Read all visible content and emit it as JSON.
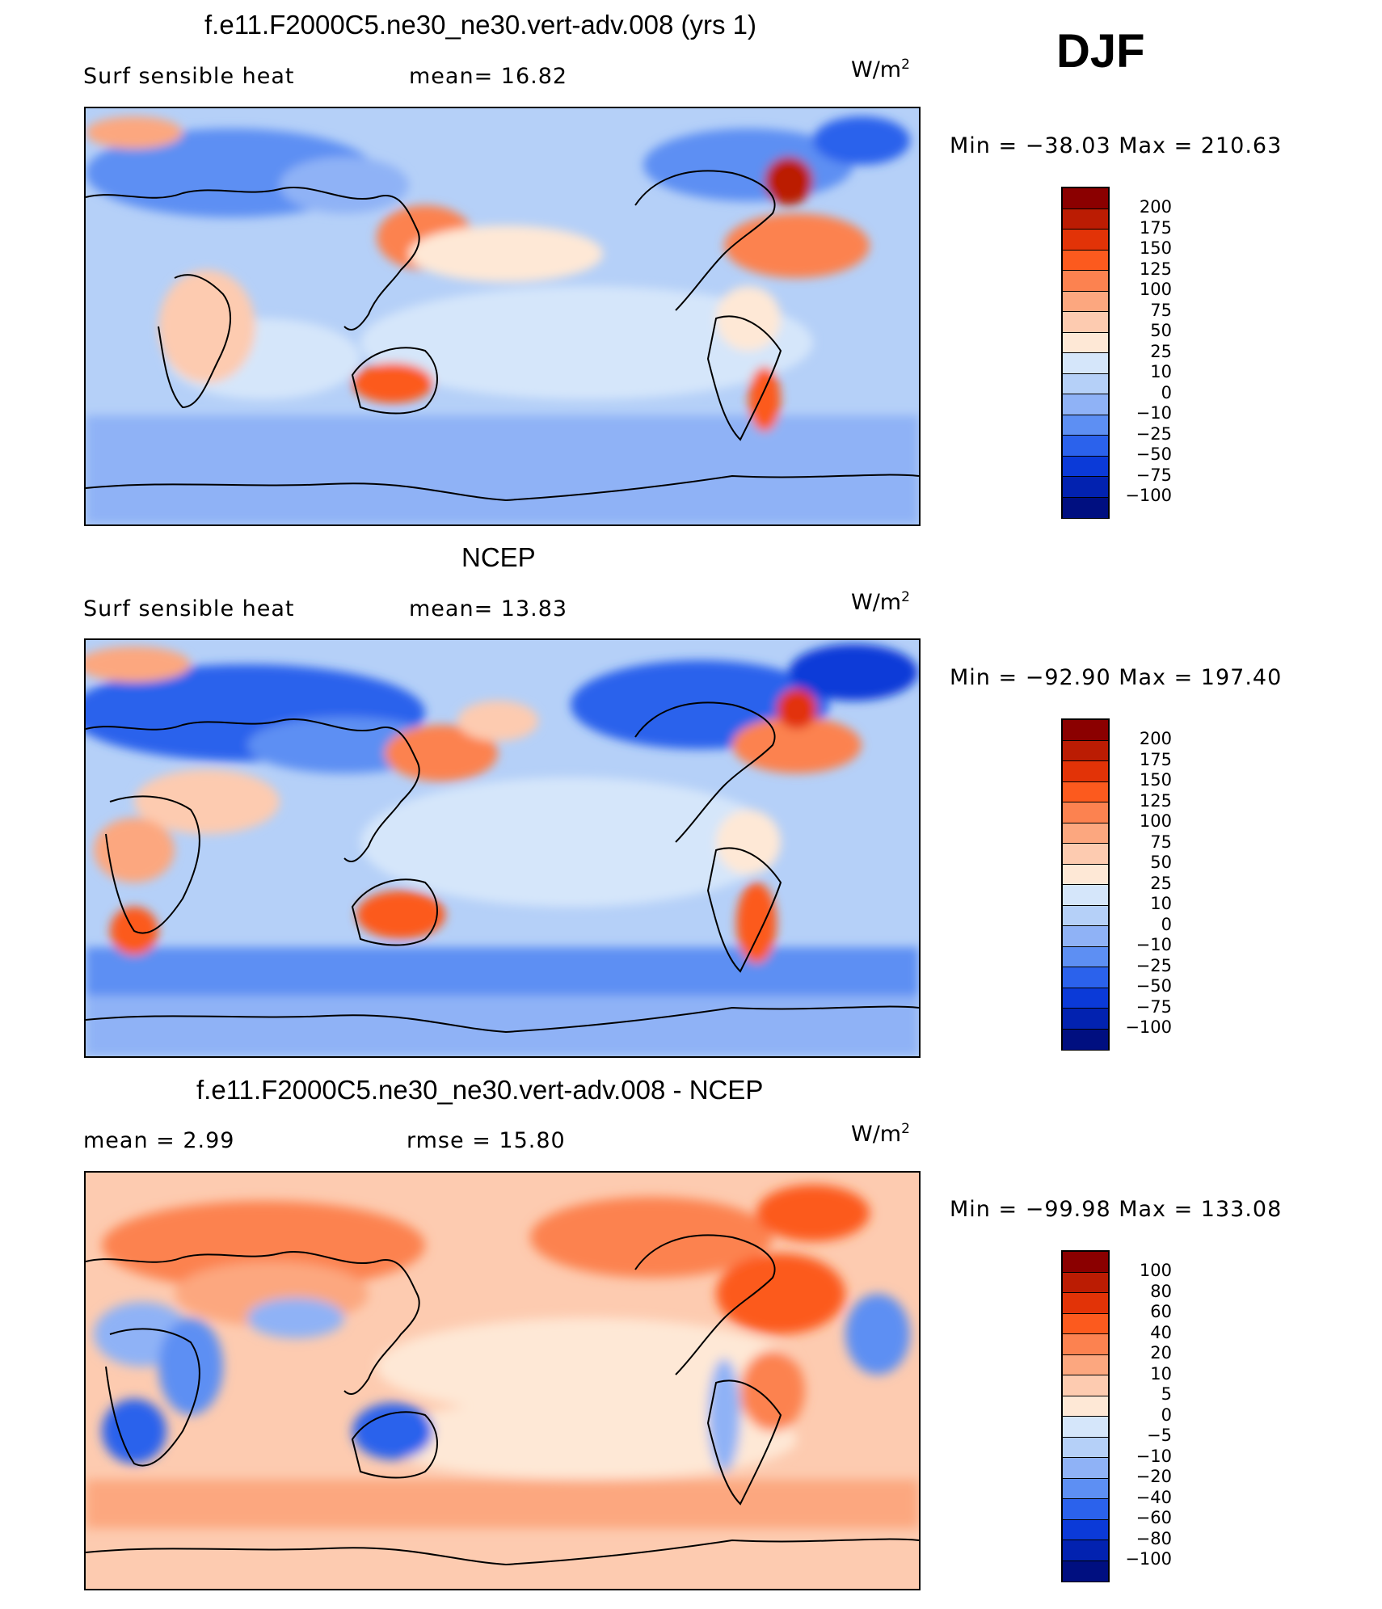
{
  "season": "DJF",
  "panels": [
    {
      "title": "f.e11.F2000C5.ne30_ne30.vert-adv.008 (yrs 1)",
      "left_text": "Surf  sensible  heat",
      "mid_text": "mean=    16.82",
      "units": "W/m",
      "units_exp": "2",
      "minmax": "Min  =  −38.03  Max  =  210.63",
      "colorbar": {
        "labels": [
          "200",
          "175",
          "150",
          "125",
          "100",
          "75",
          "50",
          "25",
          "10",
          "0",
          "−10",
          "−25",
          "−50",
          "−75",
          "−100"
        ],
        "colors": [
          "#8b0000",
          "#bb1c03",
          "#e23307",
          "#fc5a1e",
          "#fc8250",
          "#fca77f",
          "#fdcbb0",
          "#fee8d6",
          "#d5e6fa",
          "#b5d0f8",
          "#8fb2f6",
          "#5d8ff3",
          "#2b62ec",
          "#0b3ad8",
          "#0222b0",
          "#000f80"
        ]
      }
    },
    {
      "title": "NCEP",
      "left_text": "Surf  sensible  heat",
      "mid_text": "mean=    13.83",
      "units": "W/m",
      "units_exp": "2",
      "minmax": "Min  =  −92.90  Max  =  197.40",
      "colorbar": {
        "labels": [
          "200",
          "175",
          "150",
          "125",
          "100",
          "75",
          "50",
          "25",
          "10",
          "0",
          "−10",
          "−25",
          "−50",
          "−75",
          "−100"
        ],
        "colors": [
          "#8b0000",
          "#bb1c03",
          "#e23307",
          "#fc5a1e",
          "#fc8250",
          "#fca77f",
          "#fdcbb0",
          "#fee8d6",
          "#d5e6fa",
          "#b5d0f8",
          "#8fb2f6",
          "#5d8ff3",
          "#2b62ec",
          "#0b3ad8",
          "#0222b0",
          "#000f80"
        ]
      }
    },
    {
      "title": "f.e11.F2000C5.ne30_ne30.vert-adv.008 - NCEP",
      "left_text": "mean  =      2.99",
      "mid_text": "rmse  =     15.80",
      "units": "W/m",
      "units_exp": "2",
      "minmax": "Min  =  −99.98  Max  =  133.08",
      "colorbar": {
        "labels": [
          "100",
          "80",
          "60",
          "40",
          "20",
          "10",
          "5",
          "0",
          "−5",
          "−10",
          "−20",
          "−40",
          "−60",
          "−80",
          "−100"
        ],
        "colors": [
          "#8b0000",
          "#bb1c03",
          "#e23307",
          "#fc5a1e",
          "#fc8250",
          "#fca77f",
          "#fdcbb0",
          "#fee8d6",
          "#d5e6fa",
          "#b5d0f8",
          "#8fb2f6",
          "#5d8ff3",
          "#2b62ec",
          "#0b3ad8",
          "#0222b0",
          "#000f80"
        ]
      }
    }
  ]
}
